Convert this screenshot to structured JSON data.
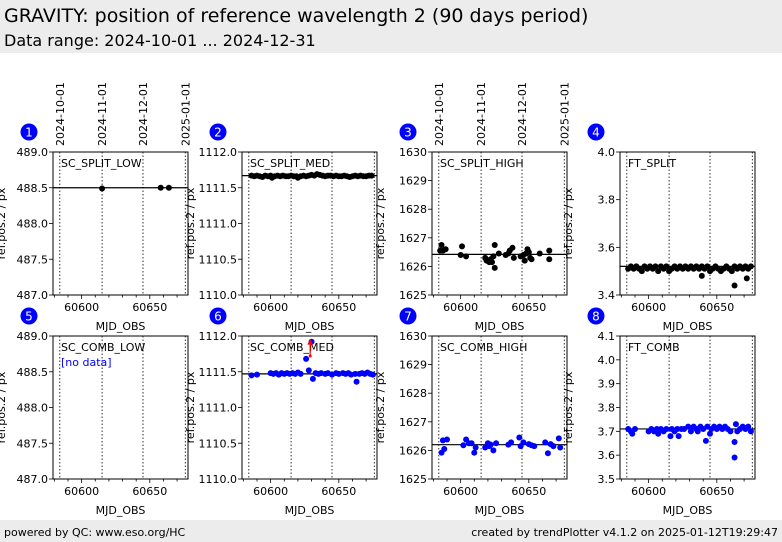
{
  "header": {
    "title": "GRAVITY: position of reference wavelength 2 (90 days period)",
    "subtitle": "Data range: 2024-10-01 ... 2024-12-31"
  },
  "footer": {
    "left": "powered by QC: www.eso.org/HC",
    "right": "created by trendPlotter v4.1.2 on 2025-01-12T19:29:47"
  },
  "colors": {
    "black": "#000000",
    "blue": "#0000ff",
    "red": "#ff0000",
    "badge": "#0000ff"
  },
  "chart_data": {
    "type": "scatter",
    "xlim": [
      60579,
      60678
    ],
    "xticks": [
      60600,
      60650
    ],
    "xlabel": "MJD_OBS",
    "ylabel": "ref.pos.2 / px",
    "date_markers": [
      {
        "label": "2024-10-01",
        "mjd": 60584
      },
      {
        "label": "2024-11-01",
        "mjd": 60615
      },
      {
        "label": "2024-12-01",
        "mjd": 60645
      },
      {
        "label": "2025-01-01",
        "mjd": 60676
      }
    ],
    "panels": [
      {
        "num": "1",
        "title": "SC_SPLIT_LOW",
        "ylim": [
          487,
          489
        ],
        "yticks": [
          "487.0",
          "487.5",
          "488.0",
          "488.5",
          "489.0"
        ],
        "ref": 488.5,
        "color": "#000000",
        "show_dates": true,
        "x": [
          60615,
          60658,
          60664
        ],
        "y": [
          488.49,
          488.5,
          488.5
        ]
      },
      {
        "num": "2",
        "title": "SC_SPLIT_MED",
        "ylim": [
          1110,
          1112
        ],
        "yticks": [
          "1110.0",
          "1110.5",
          "1111.0",
          "1111.5",
          "1112.0"
        ],
        "ref": 1111.67,
        "color": "#000000",
        "show_dates": false,
        "x": [
          60586,
          60588,
          60590,
          60592,
          60594,
          60596,
          60598,
          60600,
          60601,
          60603,
          60605,
          60607,
          60609,
          60611,
          60613,
          60615,
          60617,
          60619,
          60620,
          60622,
          60624,
          60626,
          60628,
          60630,
          60632,
          60634,
          60636,
          60638,
          60640,
          60642,
          60644,
          60646,
          60648,
          60650,
          60652,
          60654,
          60656,
          60658,
          60660,
          60662,
          60664,
          60666,
          60668,
          60670,
          60672,
          60674
        ],
        "y": [
          1111.67,
          1111.66,
          1111.67,
          1111.66,
          1111.65,
          1111.67,
          1111.66,
          1111.67,
          1111.64,
          1111.66,
          1111.67,
          1111.66,
          1111.67,
          1111.66,
          1111.66,
          1111.67,
          1111.66,
          1111.66,
          1111.64,
          1111.66,
          1111.67,
          1111.66,
          1111.67,
          1111.68,
          1111.67,
          1111.69,
          1111.68,
          1111.67,
          1111.66,
          1111.67,
          1111.67,
          1111.66,
          1111.67,
          1111.66,
          1111.66,
          1111.67,
          1111.66,
          1111.65,
          1111.66,
          1111.67,
          1111.66,
          1111.67,
          1111.66,
          1111.66,
          1111.67,
          1111.67
        ]
      },
      {
        "num": "3",
        "title": "SC_SPLIT_HIGH",
        "ylim": [
          1625,
          1630
        ],
        "yticks": [
          "1625",
          "1626",
          "1627",
          "1628",
          "1629",
          "1630"
        ],
        "ref": 1626.42,
        "color": "#000000",
        "show_dates": true,
        "x": [
          60585,
          60586,
          60587,
          60589,
          60600,
          60601,
          60604,
          60618,
          60619,
          60621,
          60622,
          60623,
          60624,
          60625,
          60625,
          60628,
          60633,
          60635,
          60636,
          60638,
          60639,
          60644,
          60646,
          60647,
          60648,
          60649,
          60650,
          60651,
          60652,
          60658,
          60665,
          60665
        ],
        "y": [
          1626.55,
          1626.75,
          1626.55,
          1626.6,
          1626.4,
          1626.7,
          1626.35,
          1626.3,
          1626.2,
          1626.15,
          1626.25,
          1626.15,
          1626.35,
          1625.95,
          1626.75,
          1626.45,
          1626.4,
          1626.45,
          1626.55,
          1626.65,
          1626.3,
          1626.35,
          1626.4,
          1626.2,
          1626.45,
          1626.6,
          1626.5,
          1626.3,
          1626.25,
          1626.45,
          1626.55,
          1626.25
        ]
      },
      {
        "num": "4",
        "title": "FT_SPLIT",
        "ylim": [
          3.4,
          4.0
        ],
        "yticks": [
          "3.4",
          "3.6",
          "3.8",
          "4.0"
        ],
        "ref": 3.52,
        "color": "#000000",
        "show_dates": false,
        "x": [
          60585,
          60587,
          60589,
          60591,
          60593,
          60595,
          60597,
          60599,
          60601,
          60603,
          60605,
          60607,
          60609,
          60611,
          60613,
          60615,
          60617,
          60619,
          60621,
          60623,
          60625,
          60627,
          60629,
          60631,
          60633,
          60635,
          60637,
          60639,
          60641,
          60643,
          60645,
          60647,
          60649,
          60651,
          60653,
          60655,
          60657,
          60659,
          60661,
          60663,
          60665,
          60667,
          60669,
          60671,
          60673,
          60675,
          60639,
          60663,
          60672
        ],
        "y": [
          3.51,
          3.52,
          3.51,
          3.52,
          3.51,
          3.5,
          3.52,
          3.51,
          3.52,
          3.51,
          3.52,
          3.5,
          3.52,
          3.51,
          3.52,
          3.5,
          3.51,
          3.52,
          3.51,
          3.52,
          3.51,
          3.52,
          3.51,
          3.52,
          3.51,
          3.52,
          3.51,
          3.52,
          3.51,
          3.52,
          3.5,
          3.51,
          3.52,
          3.51,
          3.5,
          3.51,
          3.52,
          3.51,
          3.5,
          3.52,
          3.51,
          3.52,
          3.51,
          3.52,
          3.51,
          3.52,
          3.48,
          3.44,
          3.47
        ]
      },
      {
        "num": "5",
        "title": "SC_COMB_LOW",
        "no_data": "[no data]",
        "ylim": [
          487,
          489
        ],
        "yticks": [
          "487.0",
          "487.5",
          "488.0",
          "488.5",
          "489.0"
        ],
        "ref": null,
        "color": "#0000ff",
        "show_dates": false,
        "x": [],
        "y": []
      },
      {
        "num": "6",
        "title": "SC_COMB_MED",
        "ylim": [
          1110,
          1112
        ],
        "yticks": [
          "1110.0",
          "1110.5",
          "1111.0",
          "1111.5",
          "1112.0"
        ],
        "ref": 1111.47,
        "color": "#0000ff",
        "show_dates": false,
        "x": [
          60586,
          60590,
          60600,
          60602,
          60604,
          60606,
          60608,
          60610,
          60612,
          60614,
          60616,
          60618,
          60620,
          60622,
          60626,
          60628,
          60630,
          60631,
          60633,
          60635,
          60637,
          60640,
          60642,
          60645,
          60648,
          60650,
          60653,
          60655,
          60657,
          60659,
          60662,
          60663,
          60665,
          60667,
          60669,
          60671,
          60673,
          60675
        ],
        "y": [
          1111.45,
          1111.46,
          1111.48,
          1111.47,
          1111.48,
          1111.46,
          1111.48,
          1111.47,
          1111.48,
          1111.47,
          1111.48,
          1111.47,
          1111.49,
          1111.47,
          1111.68,
          1111.52,
          1111.92,
          1111.4,
          1111.48,
          1111.47,
          1111.48,
          1111.47,
          1111.48,
          1111.46,
          1111.48,
          1111.47,
          1111.48,
          1111.47,
          1111.48,
          1111.46,
          1111.47,
          1111.36,
          1111.47,
          1111.48,
          1111.47,
          1111.49,
          1111.47,
          1111.46
        ],
        "errorbar": {
          "x": 60629,
          "low": 1111.72,
          "high": 1111.95,
          "color": "#ff0000"
        }
      },
      {
        "num": "7",
        "title": "SC_COMB_HIGH",
        "ylim": [
          1625,
          1630
        ],
        "yticks": [
          "1625",
          "1626",
          "1627",
          "1628",
          "1629",
          "1630"
        ],
        "ref": 1626.2,
        "color": "#0000ff",
        "show_dates": false,
        "x": [
          60586,
          60587,
          60588,
          60590,
          60602,
          60604,
          60606,
          60608,
          60610,
          60611,
          60618,
          60620,
          60621,
          60622,
          60624,
          60626,
          60635,
          60637,
          60643,
          60644,
          60646,
          60650,
          60652,
          60654,
          60662,
          60664,
          60666,
          60668,
          60672,
          60673
        ],
        "y": [
          1625.92,
          1626.35,
          1626.05,
          1626.38,
          1626.18,
          1626.38,
          1626.25,
          1626.25,
          1625.92,
          1626.1,
          1626.1,
          1626.25,
          1626.15,
          1626.2,
          1626.0,
          1626.25,
          1626.2,
          1626.28,
          1626.45,
          1626.15,
          1626.28,
          1626.22,
          1626.18,
          1626.15,
          1626.28,
          1625.9,
          1626.22,
          1626.15,
          1626.42,
          1626.1
        ]
      },
      {
        "num": "8",
        "title": "FT_COMB",
        "ylim": [
          3.5,
          4.1
        ],
        "yticks": [
          "3.5",
          "3.6",
          "3.7",
          "3.8",
          "3.9",
          "4.0",
          "4.1"
        ],
        "ref": 3.71,
        "color": "#0000ff",
        "show_dates": false,
        "x": [
          60585,
          60587,
          60588,
          60590,
          60600,
          60602,
          60604,
          60606,
          60607,
          60609,
          60611,
          60613,
          60616,
          60617,
          60619,
          60621,
          60622,
          60624,
          60626,
          60629,
          60631,
          60633,
          60635,
          60636,
          60638,
          60640,
          60642,
          60643,
          60645,
          60646,
          60648,
          60650,
          60652,
          60654,
          60656,
          60658,
          60660,
          60663,
          60663,
          60664,
          60665,
          60667,
          60669,
          60671,
          60673,
          60675
        ],
        "y": [
          3.71,
          3.7,
          3.69,
          3.71,
          3.7,
          3.71,
          3.7,
          3.71,
          3.69,
          3.71,
          3.7,
          3.71,
          3.68,
          3.71,
          3.7,
          3.71,
          3.68,
          3.71,
          3.71,
          3.72,
          3.7,
          3.72,
          3.71,
          3.7,
          3.72,
          3.71,
          3.66,
          3.72,
          3.69,
          3.71,
          3.72,
          3.71,
          3.72,
          3.71,
          3.72,
          3.71,
          3.7,
          3.655,
          3.59,
          3.73,
          3.7,
          3.71,
          3.72,
          3.71,
          3.72,
          3.7
        ]
      }
    ]
  }
}
